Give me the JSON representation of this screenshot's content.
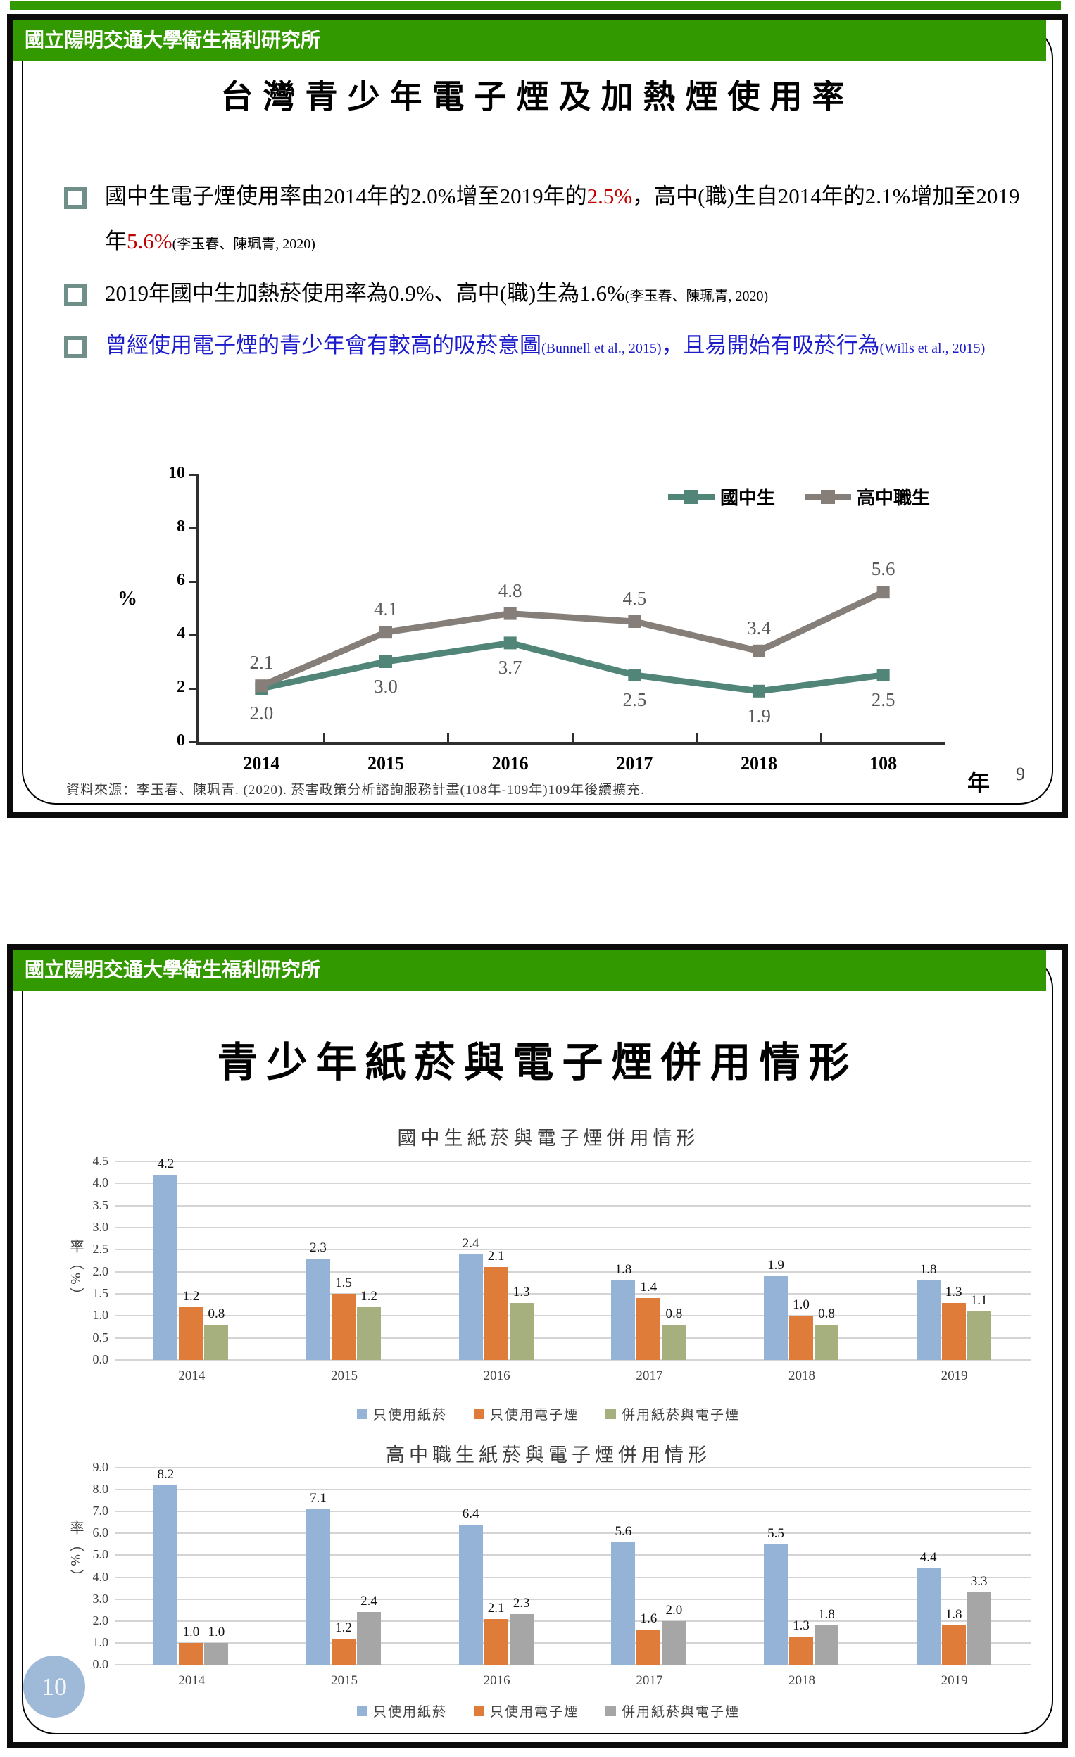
{
  "colors": {
    "header_green": "#339900",
    "red_text": "#C00000",
    "blue_text": "#1C1CCD",
    "line_teal": "#508578",
    "line_gray": "#867F79",
    "bar_blue": "#95B3D7",
    "bar_orange": "#E07C39",
    "bar_olive": "#A6B07F",
    "bar_gray": "#A6A6A6",
    "page_bubble_blue": "#9FB9D8"
  },
  "slide1": {
    "header": "國立陽明交通大學衛生福利研究所",
    "title": "台灣青少年電子煙及加熱煙使用率",
    "bullets": [
      {
        "segments": [
          {
            "text": "國中生電子煙使用率由2014年的2.0%增至2019年的",
            "style": "normal"
          },
          {
            "text": "2.5%",
            "style": "red"
          },
          {
            "text": "，高中(職)生自2014年的2.1%增加至2019年",
            "style": "normal"
          },
          {
            "text": "5.6%",
            "style": "red"
          },
          {
            "text": "(李玉春、陳珮青, 2020)",
            "style": "sub"
          }
        ]
      },
      {
        "segments": [
          {
            "text": "2019年國中生加熱菸使用率為0.9%、高中(職)生為1.6%",
            "style": "normal"
          },
          {
            "text": "(李玉春、陳珮青, 2020)",
            "style": "sub"
          }
        ]
      },
      {
        "segments": [
          {
            "text": "曾經使用電子煙的青少年會有較高的吸菸意圖",
            "style": "blue"
          },
          {
            "text": "(Bunnell et al., 2015)",
            "style": "blue-sub"
          },
          {
            "text": "，且易開始有吸菸行為",
            "style": "blue"
          },
          {
            "text": "(Wills et al., 2015)",
            "style": "blue-sub"
          }
        ]
      }
    ],
    "source": "資料來源：李玉春、陳珮青. (2020). 菸害政策分析諮詢服務計畫(108年-109年)109年後續擴充.",
    "page_number": "9"
  },
  "slide2": {
    "header": "國立陽明交通大學衛生福利研究所",
    "title": "青少年紙菸與電子煙併用情形",
    "page_number": "10"
  },
  "chart_data": [
    {
      "id": "trend",
      "type": "line",
      "title": "",
      "categories": [
        "2014",
        "2015",
        "2016",
        "2017",
        "2018",
        "108"
      ],
      "series": [
        {
          "name": "國中生",
          "color": "#508578",
          "values": [
            2.0,
            3.0,
            3.7,
            2.5,
            1.9,
            2.5
          ],
          "label_position": "below"
        },
        {
          "name": "高中職生",
          "color": "#867F79",
          "values": [
            2.1,
            4.1,
            4.8,
            4.5,
            3.4,
            5.6
          ],
          "label_position": "above"
        }
      ],
      "xlabel": "年",
      "ylabel": "%",
      "ylim": [
        0,
        10
      ],
      "yticks": [
        0,
        2,
        4,
        6,
        8,
        10
      ],
      "grid": false,
      "legend_position": "top-right"
    },
    {
      "id": "junior",
      "type": "bar",
      "title": "國中生紙菸與電子煙併用情形",
      "categories": [
        "2014",
        "2015",
        "2016",
        "2017",
        "2018",
        "2019"
      ],
      "series": [
        {
          "name": "只使用紙菸",
          "color": "#95B3D7",
          "values": [
            4.2,
            2.3,
            2.4,
            1.8,
            1.9,
            1.8
          ]
        },
        {
          "name": "只使用電子煙",
          "color": "#E07C39",
          "values": [
            1.2,
            1.5,
            2.1,
            1.4,
            1.0,
            1.3
          ]
        },
        {
          "name": "併用紙菸與電子煙",
          "color": "#A6B07F",
          "values": [
            0.8,
            1.2,
            1.3,
            0.8,
            0.8,
            1.1
          ]
        }
      ],
      "xlabel": "",
      "ylabel": "率（%）",
      "ylim": [
        0,
        4.5
      ],
      "ytick_step": 0.5,
      "grid": true,
      "legend_position": "bottom"
    },
    {
      "id": "senior",
      "type": "bar",
      "title": "高中職生紙菸與電子煙併用情形",
      "categories": [
        "2014",
        "2015",
        "2016",
        "2017",
        "2018",
        "2019"
      ],
      "series": [
        {
          "name": "只使用紙菸",
          "color": "#95B3D7",
          "values": [
            8.2,
            7.1,
            6.4,
            5.6,
            5.5,
            4.4
          ]
        },
        {
          "name": "只使用電子煙",
          "color": "#E07C39",
          "values": [
            1.0,
            1.2,
            2.1,
            1.6,
            1.3,
            1.8
          ]
        },
        {
          "name": "併用紙菸與電子煙",
          "color": "#A6A6A6",
          "values": [
            1.0,
            2.4,
            2.3,
            2.0,
            1.8,
            3.3
          ]
        }
      ],
      "xlabel": "",
      "ylabel": "率（%）",
      "ylim": [
        0,
        9.0
      ],
      "ytick_step": 1.0,
      "grid": true,
      "legend_position": "bottom"
    }
  ]
}
